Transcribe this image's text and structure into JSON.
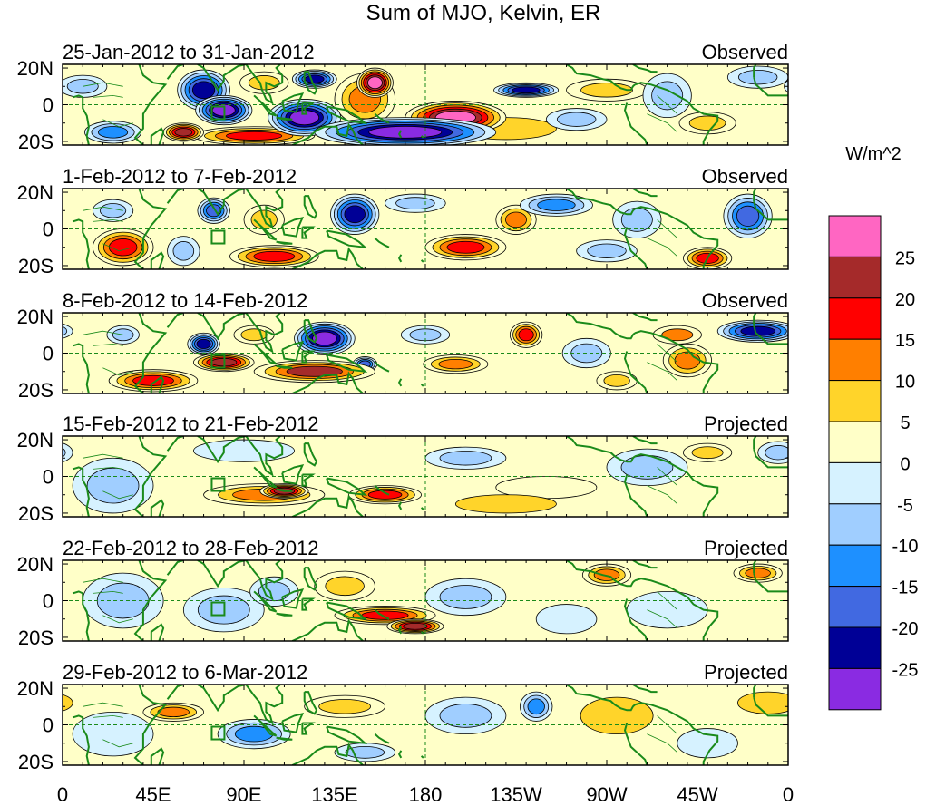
{
  "chart_data": {
    "type": "heatmap",
    "title": "Sum of MJO, Kelvin, ER",
    "units_label": "W/m^2",
    "y_ticks": [
      "20N",
      "0",
      "20S"
    ],
    "x_ticks": [
      "0",
      "45E",
      "90E",
      "135E",
      "180",
      "135W",
      "90W",
      "45W",
      "0"
    ],
    "legend": {
      "levels": [
        "25",
        "20",
        "15",
        "10",
        "5",
        "0",
        "-5",
        "-10",
        "-15",
        "-20",
        "-25"
      ],
      "colors": [
        "#ff66c2",
        "#a52a2a",
        "#ff0000",
        "#ff7f00",
        "#ffd42a",
        "#ffffc8",
        "#d6f2ff",
        "#a0ceff",
        "#1e90ff",
        "#4169e1",
        "#000096",
        "#8a2be2"
      ]
    },
    "colors": {
      "coastline": "#1a8a1a",
      "frame": "#000000",
      "grid": "#1a8a1a"
    },
    "panels": [
      {
        "period": "25-Jan-2012 to 31-Jan-2012",
        "status": "Observed",
        "blobs": [
          {
            "lon": 230,
            "lat": 8,
            "rlon": 16,
            "rlat": 4,
            "value": -23
          },
          {
            "lon": 120,
            "lat": -7,
            "rlon": 18,
            "rlat": 10,
            "value": -27
          },
          {
            "lon": 155,
            "lat": 12,
            "rlon": 9,
            "rlat": 8,
            "value": 27
          },
          {
            "lon": 70,
            "lat": 8,
            "rlon": 13,
            "rlat": 11,
            "value": -21
          },
          {
            "lon": 80,
            "lat": -3,
            "rlon": 14,
            "rlat": 8,
            "value": -28
          },
          {
            "lon": 125,
            "lat": 14,
            "rlon": 11,
            "rlat": 5,
            "value": -24
          },
          {
            "lon": 195,
            "lat": -7,
            "rlon": 25,
            "rlat": 9,
            "value": 26
          },
          {
            "lon": 170,
            "lat": -15,
            "rlon": 45,
            "rlat": 8,
            "value": -29
          },
          {
            "lon": 60,
            "lat": -15,
            "rlon": 10,
            "rlat": 5,
            "value": 24
          },
          {
            "lon": 95,
            "lat": -17,
            "rlon": 30,
            "rlat": 5,
            "value": 19
          },
          {
            "lon": 150,
            "lat": 3,
            "rlon": 15,
            "rlat": 14,
            "value": 11
          },
          {
            "lon": 270,
            "lat": 8,
            "rlon": 20,
            "rlat": 6,
            "value": 8
          },
          {
            "lon": 300,
            "lat": 5,
            "rlon": 12,
            "rlat": 12,
            "value": -9
          },
          {
            "lon": 345,
            "lat": 15,
            "rlon": 15,
            "rlat": 6,
            "value": -9
          },
          {
            "lon": 25,
            "lat": -15,
            "rlon": 14,
            "rlat": 6,
            "value": -12
          },
          {
            "lon": 10,
            "lat": 10,
            "rlon": 12,
            "rlat": 6,
            "value": -7
          },
          {
            "lon": 220,
            "lat": -13,
            "rlon": 25,
            "rlat": 6,
            "value": 5
          },
          {
            "lon": 100,
            "lat": 12,
            "rlon": 12,
            "rlat": 6,
            "value": 6
          },
          {
            "lon": 320,
            "lat": -10,
            "rlon": 14,
            "rlat": 6,
            "value": 7
          },
          {
            "lon": 255,
            "lat": -8,
            "rlon": 15,
            "rlat": 6,
            "value": -7
          }
        ]
      },
      {
        "period": "1-Feb-2012 to 7-Feb-2012",
        "status": "Observed",
        "blobs": [
          {
            "lon": 145,
            "lat": 8,
            "rlon": 12,
            "rlat": 11,
            "value": -23
          },
          {
            "lon": 320,
            "lat": -16,
            "rlon": 12,
            "rlat": 6,
            "value": 19
          },
          {
            "lon": 30,
            "lat": -10,
            "rlon": 15,
            "rlat": 10,
            "value": 18
          },
          {
            "lon": 75,
            "lat": 10,
            "rlon": 8,
            "rlat": 7,
            "value": -17
          },
          {
            "lon": 105,
            "lat": -15,
            "rlon": 22,
            "rlat": 6,
            "value": 16
          },
          {
            "lon": 200,
            "lat": -10,
            "rlon": 20,
            "rlat": 7,
            "value": 16
          },
          {
            "lon": 225,
            "lat": 5,
            "rlon": 10,
            "rlat": 8,
            "value": 13
          },
          {
            "lon": 245,
            "lat": 13,
            "rlon": 18,
            "rlat": 6,
            "value": -15
          },
          {
            "lon": 340,
            "lat": 7,
            "rlon": 12,
            "rlat": 12,
            "value": -18
          },
          {
            "lon": 25,
            "lat": 10,
            "rlon": 10,
            "rlat": 6,
            "value": -8
          },
          {
            "lon": 100,
            "lat": 5,
            "rlon": 10,
            "rlat": 8,
            "value": 6
          },
          {
            "lon": 175,
            "lat": 14,
            "rlon": 15,
            "rlat": 5,
            "value": -6
          },
          {
            "lon": 285,
            "lat": 5,
            "rlon": 12,
            "rlat": 10,
            "value": -7
          },
          {
            "lon": 60,
            "lat": -12,
            "rlon": 8,
            "rlat": 8,
            "value": -9
          },
          {
            "lon": 270,
            "lat": -12,
            "rlon": 15,
            "rlat": 6,
            "value": -6
          }
        ]
      },
      {
        "period": "8-Feb-2012 to 14-Feb-2012",
        "status": "Observed",
        "blobs": [
          {
            "lon": 70,
            "lat": 5,
            "rlon": 8,
            "rlat": 6,
            "value": -23
          },
          {
            "lon": 130,
            "lat": 8,
            "rlon": 15,
            "rlat": 9,
            "value": -26
          },
          {
            "lon": 345,
            "lat": 12,
            "rlon": 20,
            "rlat": 6,
            "value": -24
          },
          {
            "lon": 125,
            "lat": -10,
            "rlon": 30,
            "rlat": 6,
            "value": 20
          },
          {
            "lon": 45,
            "lat": -15,
            "rlon": 22,
            "rlat": 6,
            "value": 18
          },
          {
            "lon": 80,
            "lat": -5,
            "rlon": 15,
            "rlat": 5,
            "value": 21
          },
          {
            "lon": 230,
            "lat": 10,
            "rlon": 8,
            "rlat": 7,
            "value": 16
          },
          {
            "lon": 195,
            "lat": -6,
            "rlon": 16,
            "rlat": 5,
            "value": 14
          },
          {
            "lon": 310,
            "lat": -4,
            "rlon": 12,
            "rlat": 9,
            "value": 12
          },
          {
            "lon": 305,
            "lat": 10,
            "rlon": 12,
            "rlat": 5,
            "value": 10
          },
          {
            "lon": 150,
            "lat": -6,
            "rlon": 6,
            "rlat": 4,
            "value": -17
          },
          {
            "lon": 95,
            "lat": 10,
            "rlon": 10,
            "rlat": 5,
            "value": 9
          },
          {
            "lon": 30,
            "lat": 10,
            "rlon": 8,
            "rlat": 5,
            "value": -8
          },
          {
            "lon": 260,
            "lat": 0,
            "rlon": 12,
            "rlat": 8,
            "value": -8
          },
          {
            "lon": 180,
            "lat": 10,
            "rlon": 12,
            "rlat": 5,
            "value": -6
          },
          {
            "lon": 275,
            "lat": -15,
            "rlon": 10,
            "rlat": 5,
            "value": 6
          }
        ]
      },
      {
        "period": "15-Feb-2012 to 21-Feb-2012",
        "status": "Projected",
        "blobs": [
          {
            "lon": 100,
            "lat": -10,
            "rlon": 30,
            "rlat": 6,
            "value": 14
          },
          {
            "lon": 160,
            "lat": -10,
            "rlon": 18,
            "rlat": 5,
            "value": 19
          },
          {
            "lon": 110,
            "lat": -8,
            "rlon": 12,
            "rlat": 4,
            "value": 22
          },
          {
            "lon": 220,
            "lat": -15,
            "rlon": 25,
            "rlat": 5,
            "value": 5
          },
          {
            "lon": 25,
            "lat": -5,
            "rlon": 20,
            "rlat": 15,
            "value": -7
          },
          {
            "lon": 200,
            "lat": 10,
            "rlon": 20,
            "rlat": 6,
            "value": -7
          },
          {
            "lon": 290,
            "lat": 5,
            "rlon": 20,
            "rlat": 10,
            "value": -6
          },
          {
            "lon": 320,
            "lat": 13,
            "rlon": 12,
            "rlat": 5,
            "value": 6
          },
          {
            "lon": 90,
            "lat": 14,
            "rlon": 25,
            "rlat": 6,
            "value": -5
          },
          {
            "lon": 240,
            "lat": -6,
            "rlon": 25,
            "rlat": 6,
            "value": 2
          },
          {
            "lon": 355,
            "lat": 13,
            "rlon": 10,
            "rlat": 6,
            "value": -7
          }
        ]
      },
      {
        "period": "22-Feb-2012 to 28-Feb-2012",
        "status": "Projected",
        "blobs": [
          {
            "lon": 160,
            "lat": -8,
            "rlon": 25,
            "rlat": 5,
            "value": 16
          },
          {
            "lon": 175,
            "lat": -14,
            "rlon": 14,
            "rlat": 4,
            "value": 21
          },
          {
            "lon": 140,
            "lat": 8,
            "rlon": 15,
            "rlat": 8,
            "value": 7
          },
          {
            "lon": 270,
            "lat": 14,
            "rlon": 12,
            "rlat": 6,
            "value": 12
          },
          {
            "lon": 345,
            "lat": 15,
            "rlon": 12,
            "rlat": 5,
            "value": 11
          },
          {
            "lon": 80,
            "lat": -5,
            "rlon": 20,
            "rlat": 12,
            "value": -6
          },
          {
            "lon": 200,
            "lat": 2,
            "rlon": 20,
            "rlat": 10,
            "value": -6
          },
          {
            "lon": 250,
            "lat": -10,
            "rlon": 15,
            "rlat": 8,
            "value": -5
          },
          {
            "lon": 30,
            "lat": 0,
            "rlon": 20,
            "rlat": 15,
            "value": -6
          },
          {
            "lon": 300,
            "lat": -5,
            "rlon": 20,
            "rlat": 10,
            "value": -5
          },
          {
            "lon": 105,
            "lat": 5,
            "rlon": 12,
            "rlat": 8,
            "value": -9
          }
        ]
      },
      {
        "period": "29-Feb-2012 to 6-Mar-2012",
        "status": "Projected",
        "blobs": [
          {
            "lon": 55,
            "lat": 7,
            "rlon": 15,
            "rlat": 5,
            "value": 12
          },
          {
            "lon": 95,
            "lat": -5,
            "rlon": 18,
            "rlat": 8,
            "value": -11
          },
          {
            "lon": 235,
            "lat": 10,
            "rlon": 8,
            "rlat": 8,
            "value": -14
          },
          {
            "lon": 200,
            "lat": 5,
            "rlon": 20,
            "rlat": 10,
            "value": -6
          },
          {
            "lon": 140,
            "lat": 10,
            "rlon": 20,
            "rlat": 6,
            "value": 6
          },
          {
            "lon": 275,
            "lat": 5,
            "rlon": 18,
            "rlat": 10,
            "value": 5
          },
          {
            "lon": 150,
            "lat": -15,
            "rlon": 15,
            "rlat": 5,
            "value": -8
          },
          {
            "lon": 25,
            "lat": -5,
            "rlon": 20,
            "rlat": 12,
            "value": -5
          },
          {
            "lon": 320,
            "lat": -10,
            "rlon": 15,
            "rlat": 8,
            "value": -5
          },
          {
            "lon": 350,
            "lat": 12,
            "rlon": 15,
            "rlat": 6,
            "value": 5
          }
        ]
      }
    ]
  }
}
